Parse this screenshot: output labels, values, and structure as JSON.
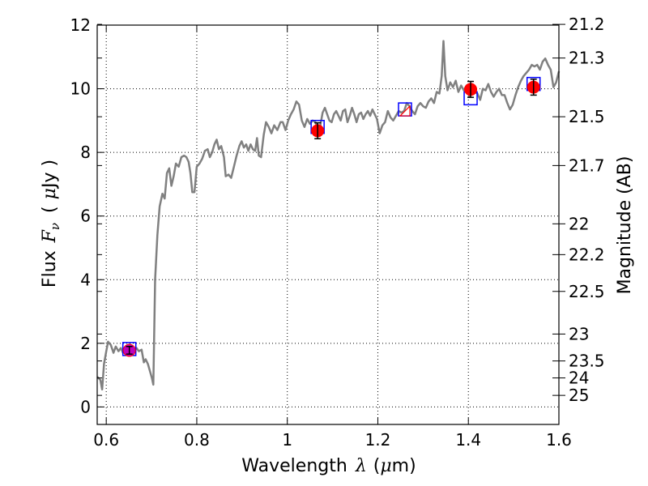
{
  "chart_data": {
    "type": "line",
    "xlabel": {
      "prefix": "Wavelength",
      "symbol": "λ",
      "unit_open": "(",
      "unit_symbol": "μ",
      "unit_rest": "m)"
    },
    "ylabel": {
      "prefix": "Flux",
      "symbol": "F",
      "subscript": "ν",
      "unit_open": "(",
      "unit_symbol": "μ",
      "unit_rest": "Jy )"
    },
    "y2label": "Magnitude (AB)",
    "xlim": [
      0.58,
      1.6
    ],
    "ylim": [
      -0.55,
      12
    ],
    "grid": true,
    "x_ticks": [
      {
        "value": 0.6,
        "label": "0.6"
      },
      {
        "value": 0.8,
        "label": "0.8"
      },
      {
        "value": 1.0,
        "label": "1"
      },
      {
        "value": 1.2,
        "label": "1.2"
      },
      {
        "value": 1.4,
        "label": "1.4"
      },
      {
        "value": 1.6,
        "label": "1.6"
      }
    ],
    "y_ticks": [
      {
        "value": 0,
        "label": "0"
      },
      {
        "value": 2,
        "label": "2"
      },
      {
        "value": 4,
        "label": "4"
      },
      {
        "value": 6,
        "label": "6"
      },
      {
        "value": 8,
        "label": "8"
      },
      {
        "value": 10,
        "label": "10"
      },
      {
        "value": 12,
        "label": "12"
      }
    ],
    "y2_ticks": [
      {
        "mag": 21.2,
        "label": "21.2"
      },
      {
        "mag": 21.3,
        "label": "21.3"
      },
      {
        "mag": 21.5,
        "label": "21.5"
      },
      {
        "mag": 21.7,
        "label": "21.7"
      },
      {
        "mag": 22,
        "label": "22"
      },
      {
        "mag": 22.2,
        "label": "22.2"
      },
      {
        "mag": 22.5,
        "label": "22.5"
      },
      {
        "mag": 23,
        "label": "23"
      },
      {
        "mag": 23.5,
        "label": "23.5"
      },
      {
        "mag": 24,
        "label": "24"
      },
      {
        "mag": 25,
        "label": "25"
      }
    ],
    "series": [
      {
        "kind": "model-spectrum",
        "color": "#808080",
        "points": [
          [
            0.58,
            0.95
          ],
          [
            0.587,
            0.85
          ],
          [
            0.591,
            0.55
          ],
          [
            0.595,
            1.35
          ],
          [
            0.6,
            1.75
          ],
          [
            0.604,
            2.05
          ],
          [
            0.61,
            1.95
          ],
          [
            0.616,
            1.7
          ],
          [
            0.621,
            1.9
          ],
          [
            0.627,
            1.75
          ],
          [
            0.632,
            1.85
          ],
          [
            0.637,
            1.7
          ],
          [
            0.643,
            1.85
          ],
          [
            0.649,
            1.8
          ],
          [
            0.655,
            1.82
          ],
          [
            0.661,
            1.78
          ],
          [
            0.667,
            1.85
          ],
          [
            0.672,
            1.75
          ],
          [
            0.678,
            1.8
          ],
          [
            0.683,
            1.4
          ],
          [
            0.687,
            1.5
          ],
          [
            0.692,
            1.35
          ],
          [
            0.697,
            1.1
          ],
          [
            0.701,
            0.9
          ],
          [
            0.704,
            0.7
          ],
          [
            0.708,
            4.0
          ],
          [
            0.713,
            5.4
          ],
          [
            0.718,
            6.3
          ],
          [
            0.724,
            6.7
          ],
          [
            0.729,
            6.55
          ],
          [
            0.734,
            7.35
          ],
          [
            0.739,
            7.5
          ],
          [
            0.744,
            6.95
          ],
          [
            0.749,
            7.25
          ],
          [
            0.754,
            7.65
          ],
          [
            0.76,
            7.55
          ],
          [
            0.766,
            7.85
          ],
          [
            0.772,
            7.9
          ],
          [
            0.777,
            7.85
          ],
          [
            0.782,
            7.7
          ],
          [
            0.786,
            7.35
          ],
          [
            0.79,
            6.75
          ],
          [
            0.795,
            6.75
          ],
          [
            0.8,
            7.55
          ],
          [
            0.806,
            7.65
          ],
          [
            0.812,
            7.8
          ],
          [
            0.818,
            8.05
          ],
          [
            0.824,
            8.1
          ],
          [
            0.829,
            7.85
          ],
          [
            0.834,
            8.0
          ],
          [
            0.839,
            8.25
          ],
          [
            0.844,
            8.4
          ],
          [
            0.849,
            8.1
          ],
          [
            0.854,
            8.2
          ],
          [
            0.86,
            7.85
          ],
          [
            0.864,
            7.25
          ],
          [
            0.87,
            7.3
          ],
          [
            0.876,
            7.2
          ],
          [
            0.882,
            7.55
          ],
          [
            0.888,
            7.9
          ],
          [
            0.894,
            8.2
          ],
          [
            0.899,
            8.35
          ],
          [
            0.904,
            8.15
          ],
          [
            0.909,
            8.25
          ],
          [
            0.914,
            8.05
          ],
          [
            0.919,
            8.25
          ],
          [
            0.924,
            8.1
          ],
          [
            0.929,
            8.05
          ],
          [
            0.933,
            8.45
          ],
          [
            0.937,
            7.9
          ],
          [
            0.942,
            7.85
          ],
          [
            0.948,
            8.55
          ],
          [
            0.953,
            8.95
          ],
          [
            0.959,
            8.8
          ],
          [
            0.965,
            8.6
          ],
          [
            0.971,
            8.85
          ],
          [
            0.978,
            8.7
          ],
          [
            0.985,
            8.95
          ],
          [
            0.99,
            8.95
          ],
          [
            0.996,
            8.7
          ],
          [
            1.002,
            9.0
          ],
          [
            1.008,
            9.2
          ],
          [
            1.014,
            9.35
          ],
          [
            1.02,
            9.6
          ],
          [
            1.026,
            9.5
          ],
          [
            1.032,
            9.0
          ],
          [
            1.038,
            8.8
          ],
          [
            1.044,
            9.05
          ],
          [
            1.05,
            8.9
          ],
          [
            1.056,
            9.0
          ],
          [
            1.062,
            8.95
          ],
          [
            1.068,
            8.75
          ],
          [
            1.073,
            8.85
          ],
          [
            1.078,
            9.25
          ],
          [
            1.083,
            9.4
          ],
          [
            1.088,
            9.2
          ],
          [
            1.093,
            9.0
          ],
          [
            1.098,
            8.95
          ],
          [
            1.103,
            9.2
          ],
          [
            1.108,
            9.3
          ],
          [
            1.113,
            9.15
          ],
          [
            1.118,
            9.0
          ],
          [
            1.123,
            9.3
          ],
          [
            1.128,
            9.35
          ],
          [
            1.133,
            8.95
          ],
          [
            1.138,
            9.15
          ],
          [
            1.143,
            9.4
          ],
          [
            1.148,
            9.2
          ],
          [
            1.153,
            8.95
          ],
          [
            1.158,
            9.2
          ],
          [
            1.163,
            9.25
          ],
          [
            1.168,
            9.05
          ],
          [
            1.173,
            9.2
          ],
          [
            1.178,
            9.3
          ],
          [
            1.183,
            9.15
          ],
          [
            1.188,
            9.35
          ],
          [
            1.193,
            9.2
          ],
          [
            1.198,
            9.05
          ],
          [
            1.204,
            8.6
          ],
          [
            1.21,
            8.85
          ],
          [
            1.216,
            8.95
          ],
          [
            1.222,
            9.3
          ],
          [
            1.228,
            9.1
          ],
          [
            1.234,
            9.0
          ],
          [
            1.24,
            9.15
          ],
          [
            1.246,
            9.3
          ],
          [
            1.252,
            9.25
          ],
          [
            1.258,
            9.3
          ],
          [
            1.264,
            9.55
          ],
          [
            1.27,
            9.45
          ],
          [
            1.276,
            9.3
          ],
          [
            1.282,
            9.2
          ],
          [
            1.288,
            9.45
          ],
          [
            1.294,
            9.55
          ],
          [
            1.3,
            9.45
          ],
          [
            1.306,
            9.4
          ],
          [
            1.312,
            9.6
          ],
          [
            1.318,
            9.7
          ],
          [
            1.324,
            9.55
          ],
          [
            1.33,
            9.9
          ],
          [
            1.336,
            9.85
          ],
          [
            1.341,
            10.4
          ],
          [
            1.345,
            11.5
          ],
          [
            1.349,
            10.4
          ],
          [
            1.354,
            9.95
          ],
          [
            1.36,
            10.2
          ],
          [
            1.366,
            10.05
          ],
          [
            1.372,
            10.25
          ],
          [
            1.378,
            9.9
          ],
          [
            1.384,
            10.1
          ],
          [
            1.39,
            9.95
          ],
          [
            1.396,
            10.1
          ],
          [
            1.402,
            9.75
          ],
          [
            1.408,
            9.95
          ],
          [
            1.414,
            9.9
          ],
          [
            1.42,
            9.85
          ],
          [
            1.426,
            9.65
          ],
          [
            1.432,
            10.0
          ],
          [
            1.438,
            9.95
          ],
          [
            1.444,
            10.15
          ],
          [
            1.45,
            9.9
          ],
          [
            1.456,
            9.75
          ],
          [
            1.462,
            9.9
          ],
          [
            1.468,
            10.0
          ],
          [
            1.474,
            9.8
          ],
          [
            1.48,
            9.8
          ],
          [
            1.486,
            9.55
          ],
          [
            1.492,
            9.35
          ],
          [
            1.498,
            9.5
          ],
          [
            1.504,
            9.8
          ],
          [
            1.51,
            10.05
          ],
          [
            1.516,
            10.25
          ],
          [
            1.522,
            10.4
          ],
          [
            1.528,
            10.5
          ],
          [
            1.534,
            10.6
          ],
          [
            1.54,
            10.75
          ],
          [
            1.546,
            10.7
          ],
          [
            1.552,
            10.75
          ],
          [
            1.558,
            10.6
          ],
          [
            1.564,
            10.85
          ],
          [
            1.57,
            10.95
          ],
          [
            1.576,
            10.75
          ],
          [
            1.582,
            10.6
          ],
          [
            1.588,
            10.05
          ],
          [
            1.594,
            10.2
          ],
          [
            1.6,
            10.55
          ]
        ]
      },
      {
        "kind": "model-photometry",
        "marker": "open-square",
        "color": "#0000ff",
        "points": [
          [
            0.651,
            1.82
          ],
          [
            1.067,
            8.8
          ],
          [
            1.26,
            9.35
          ],
          [
            1.405,
            9.7
          ],
          [
            1.544,
            10.15
          ]
        ]
      },
      {
        "kind": "observed-photometry",
        "marker": "filled-circle",
        "color": "#ff0000",
        "points": [
          {
            "x": 0.651,
            "y": 1.78,
            "yerr": 0.12
          },
          {
            "x": 1.067,
            "y": 8.68,
            "yerr": 0.25
          },
          {
            "x": 1.405,
            "y": 9.98,
            "yerr": 0.25
          },
          {
            "x": 1.544,
            "y": 10.05,
            "yerr": 0.25
          }
        ]
      },
      {
        "kind": "observed-photometry-alt",
        "marker": "filled-circle",
        "color": "#bf00bf",
        "points": [
          {
            "x": 0.651,
            "y": 1.78
          }
        ]
      },
      {
        "kind": "upper-limit",
        "marker": "triangle",
        "color": "#ff0000",
        "points": [
          [
            1.26,
            9.3
          ]
        ]
      }
    ]
  }
}
